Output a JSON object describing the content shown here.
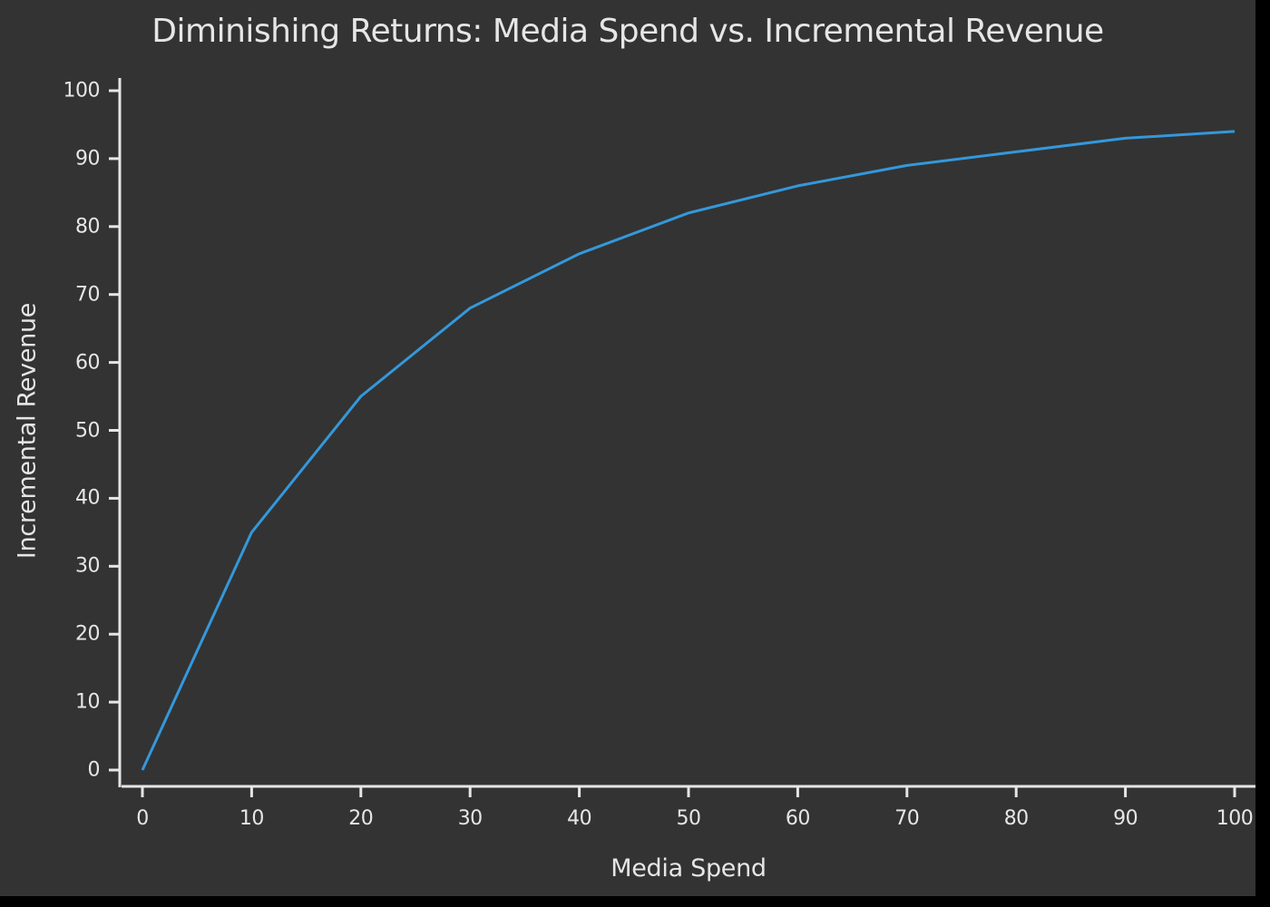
{
  "chart": {
    "title": "Diminishing Returns: Media Spend vs. Incremental Revenue",
    "xlabel": "Media Spend",
    "ylabel": "Incremental Revenue",
    "line_color": "#3498db",
    "background_color": "#333333",
    "axis_color": "#e6e6e6",
    "text_color": "#e6e6e6"
  },
  "chart_data": {
    "type": "line",
    "title": "Diminishing Returns: Media Spend vs. Incremental Revenue",
    "xlabel": "Media Spend",
    "ylabel": "Incremental Revenue",
    "x": [
      0,
      10,
      20,
      30,
      40,
      50,
      60,
      70,
      80,
      90,
      100
    ],
    "series": [
      {
        "name": "Incremental Revenue",
        "color": "#3498db",
        "values": [
          0,
          35,
          55,
          68,
          76,
          82,
          86,
          89,
          91,
          93,
          94
        ]
      }
    ],
    "xlim": [
      -2,
      102
    ],
    "ylim": [
      -2,
      102
    ],
    "xticks": [
      "0",
      "10",
      "20",
      "30",
      "40",
      "50",
      "60",
      "70",
      "80",
      "90",
      "100"
    ],
    "yticks": [
      "0",
      "10",
      "20",
      "30",
      "40",
      "50",
      "60",
      "70",
      "80",
      "90",
      "100"
    ],
    "grid": false,
    "legend": null
  }
}
